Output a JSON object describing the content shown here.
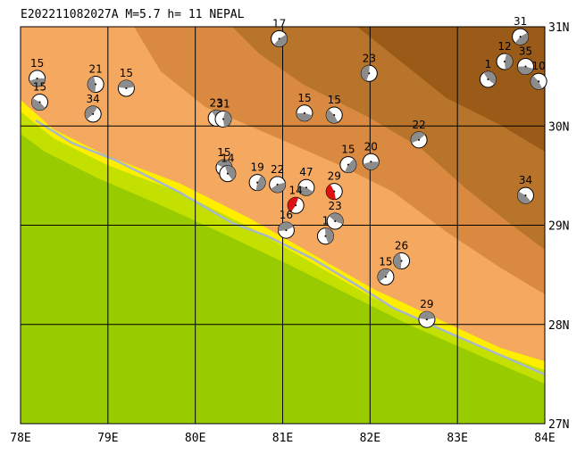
{
  "title": "E202211082027A M=5.7 h= 11 NEPAL",
  "map": {
    "xlim": [
      78,
      84
    ],
    "ylim": [
      27,
      31
    ],
    "xticks": [
      {
        "value": 78,
        "label": "78E"
      },
      {
        "value": 79,
        "label": "79E"
      },
      {
        "value": 80,
        "label": "80E"
      },
      {
        "value": 81,
        "label": "81E"
      },
      {
        "value": 82,
        "label": "82E"
      },
      {
        "value": 83,
        "label": "83E"
      },
      {
        "value": 84,
        "label": "84E"
      }
    ],
    "yticks": [
      {
        "value": 27,
        "label": "27N"
      },
      {
        "value": 28,
        "label": "28N"
      },
      {
        "value": 29,
        "label": "29N"
      },
      {
        "value": 30,
        "label": "30N"
      },
      {
        "value": 31,
        "label": "31N"
      }
    ],
    "grid": true,
    "events": [
      {
        "lon": 78.19,
        "lat": 30.48,
        "label": "15"
      },
      {
        "lon": 78.22,
        "lat": 30.24,
        "label": "15"
      },
      {
        "lon": 78.86,
        "lat": 30.42,
        "label": "21"
      },
      {
        "lon": 78.83,
        "lat": 30.12,
        "label": "34"
      },
      {
        "lon": 79.21,
        "lat": 30.38,
        "label": "15"
      },
      {
        "lon": 80.24,
        "lat": 30.08,
        "label": "23"
      },
      {
        "lon": 80.32,
        "lat": 30.07,
        "label": "31"
      },
      {
        "lon": 80.96,
        "lat": 30.88,
        "label": "17"
      },
      {
        "lon": 81.25,
        "lat": 30.13,
        "label": "15"
      },
      {
        "lon": 81.59,
        "lat": 30.11,
        "label": "15"
      },
      {
        "lon": 81.99,
        "lat": 30.53,
        "label": "23"
      },
      {
        "lon": 82.56,
        "lat": 29.86,
        "label": "22"
      },
      {
        "lon": 80.33,
        "lat": 29.58,
        "label": "15"
      },
      {
        "lon": 80.37,
        "lat": 29.52,
        "label": "14"
      },
      {
        "lon": 80.71,
        "lat": 29.43,
        "label": "19"
      },
      {
        "lon": 80.94,
        "lat": 29.41,
        "label": "22"
      },
      {
        "lon": 81.27,
        "lat": 29.38,
        "label": "47"
      },
      {
        "lon": 81.59,
        "lat": 29.34,
        "label": "29",
        "color": "#dd1111"
      },
      {
        "lon": 81.15,
        "lat": 29.2,
        "label": "14",
        "color": "#dd1111"
      },
      {
        "lon": 81.04,
        "lat": 28.95,
        "label": "16"
      },
      {
        "lon": 81.6,
        "lat": 29.04,
        "label": "23"
      },
      {
        "lon": 81.49,
        "lat": 28.89,
        "label": "1"
      },
      {
        "lon": 81.75,
        "lat": 29.61,
        "label": "15"
      },
      {
        "lon": 82.01,
        "lat": 29.64,
        "label": "20"
      },
      {
        "lon": 83.78,
        "lat": 29.3,
        "label": "34"
      },
      {
        "lon": 82.36,
        "lat": 28.64,
        "label": "26"
      },
      {
        "lon": 82.18,
        "lat": 28.48,
        "label": "15"
      },
      {
        "lon": 82.65,
        "lat": 28.05,
        "label": "29"
      },
      {
        "lon": 83.35,
        "lat": 30.47,
        "label": "1"
      },
      {
        "lon": 83.54,
        "lat": 30.65,
        "label": "12"
      },
      {
        "lon": 83.72,
        "lat": 30.9,
        "label": "31"
      },
      {
        "lon": 83.78,
        "lat": 30.6,
        "label": "35"
      },
      {
        "lon": 83.93,
        "lat": 30.45,
        "label": "10"
      }
    ]
  }
}
